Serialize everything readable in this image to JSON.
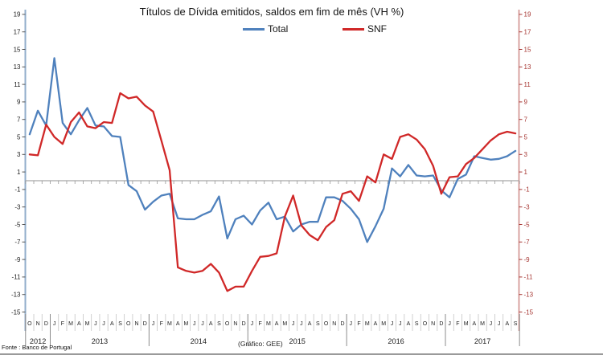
{
  "header": {
    "title": "Títulos de Dívida emitidos, saldos em fim de mês  (VH %)"
  },
  "legend": [
    {
      "label": "Total",
      "color": "#4F81BD"
    },
    {
      "label": "SNF",
      "color": "#D02828"
    }
  ],
  "footer": {
    "source": "Fonte : Banco de Portugal",
    "credit": "(Gráfico: GEE)"
  },
  "chart_data": {
    "type": "line",
    "title": "Títulos de Dívida emitidos, saldos em fim de mês (VH %)",
    "ylabel": "",
    "xlabel": "",
    "ylim": [
      -15,
      19
    ],
    "y_ticks": [
      19,
      17,
      15,
      13,
      11,
      9,
      7,
      5,
      3,
      1,
      -1,
      -3,
      -5,
      -7,
      -9,
      -11,
      -13,
      -15
    ],
    "grid": "zero-line-only",
    "dual_axis": true,
    "legend_position": "top",
    "x_months": [
      "O",
      "N",
      "D",
      "J",
      "F",
      "M",
      "A",
      "M",
      "J",
      "J",
      "A",
      "S",
      "O",
      "N",
      "D",
      "J",
      "F",
      "M",
      "A",
      "M",
      "J",
      "J",
      "A",
      "S",
      "O",
      "N",
      "D",
      "J",
      "F",
      "M",
      "A",
      "M",
      "J",
      "J",
      "A",
      "S",
      "O",
      "N",
      "D",
      "J",
      "F",
      "M",
      "A",
      "M",
      "J",
      "J",
      "A",
      "S",
      "O",
      "N",
      "D",
      "J",
      "F",
      "M",
      "A",
      "M",
      "J",
      "J",
      "A",
      "S"
    ],
    "years": [
      {
        "label": "2012",
        "months": 3
      },
      {
        "label": "2013",
        "months": 12
      },
      {
        "label": "2014",
        "months": 12
      },
      {
        "label": "2015",
        "months": 12
      },
      {
        "label": "2016",
        "months": 12
      },
      {
        "label": "2017",
        "months": 9
      }
    ],
    "series": [
      {
        "name": "Total",
        "color": "#4F81BD",
        "values": [
          5.3,
          8.0,
          6.3,
          14.0,
          6.6,
          5.3,
          6.9,
          8.3,
          6.3,
          6.2,
          5.1,
          5.0,
          -0.5,
          -1.2,
          -3.3,
          -2.4,
          -1.7,
          -1.5,
          -4.3,
          -4.4,
          -4.4,
          -3.9,
          -3.5,
          -1.8,
          -6.6,
          -4.4,
          -4.0,
          -5.0,
          -3.4,
          -2.5,
          -4.4,
          -4.1,
          -5.8,
          -5.0,
          -4.7,
          -4.7,
          -1.9,
          -1.9,
          -2.3,
          -3.2,
          -4.4,
          -7.0,
          -5.2,
          -3.2,
          1.4,
          0.5,
          1.8,
          0.6,
          0.5,
          0.6,
          -1.1,
          -1.9,
          0.2,
          0.7,
          2.8,
          2.6,
          2.4,
          2.5,
          2.8,
          3.4
        ]
      },
      {
        "name": "SNF",
        "color": "#D02828",
        "values": [
          3.0,
          2.9,
          6.4,
          5.0,
          4.2,
          6.7,
          7.8,
          6.2,
          6.0,
          6.7,
          6.6,
          10.0,
          9.4,
          9.6,
          8.6,
          7.9,
          4.6,
          1.2,
          -9.9,
          -10.3,
          -10.5,
          -10.3,
          -9.5,
          -10.5,
          -12.6,
          -12.1,
          -12.1,
          -10.3,
          -8.7,
          -8.6,
          -8.3,
          -4.1,
          -1.7,
          -5.1,
          -6.2,
          -6.8,
          -5.3,
          -4.5,
          -1.5,
          -1.2,
          -2.3,
          0.5,
          -0.2,
          3.0,
          2.5,
          5.0,
          5.3,
          4.7,
          3.6,
          1.7,
          -1.5,
          0.4,
          0.5,
          1.9,
          2.6,
          3.6,
          4.6,
          5.3,
          5.6,
          5.4
        ]
      }
    ],
    "colors": {
      "left_axis_line": "#92AECB",
      "right_axis_line": "#D08F8D",
      "right_axis_text": "#A63632",
      "zero_line": "#A6A6A6",
      "month_separator": "#C4C4C4",
      "year_separator": "#8C8C8C",
      "axis_text": "#1a1a1a"
    }
  }
}
